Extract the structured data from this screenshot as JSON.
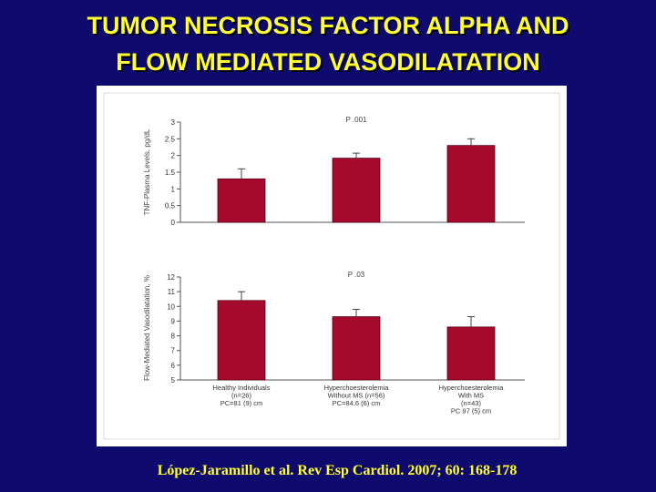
{
  "slide": {
    "title_line1": "TUMOR NECROSIS FACTOR ALPHA AND",
    "title_line2": "FLOW MEDIATED VASODILATATION",
    "citation": "López-Jaramillo et al. Rev Esp Cardiol. 2007; 60: 168-178"
  },
  "colors": {
    "background": "#0f0a6e",
    "title": "#ffff33",
    "bar": "#a50a2e",
    "axis": "#555555"
  },
  "chart_data": [
    {
      "type": "bar",
      "title": "P .001",
      "ylabel": "TNF-Plasma Levels, pg/dL",
      "ylim": [
        0,
        3
      ],
      "yticks": [
        "0",
        "0.5",
        "1",
        "1.5",
        "2",
        "2.5",
        "3"
      ],
      "categories": [
        "Healthy Individuals",
        "Hyperchoesterolemia Without MS",
        "Hyperchoesterolemia With MS"
      ],
      "values": [
        1.3,
        1.92,
        2.3
      ],
      "errors": [
        0.3,
        0.15,
        0.2
      ]
    },
    {
      "type": "bar",
      "title": "P .03",
      "ylabel": "Flow-Mediated Vasodilatation, %",
      "ylim": [
        5,
        12
      ],
      "yticks": [
        "5",
        "6",
        "7",
        "8",
        "9",
        "10",
        "11",
        "12"
      ],
      "categories": [
        "Healthy Individuals",
        "Hyperchoesterolemia Without MS",
        "Hyperchoesterolemia With MS"
      ],
      "category_lines": [
        [
          "Healthy Individuals",
          "(n=26)",
          "PC=81 (9) cm"
        ],
        [
          "Hyperchoesterolemia",
          "Without MS (n=56)",
          "PC=84.6 (6) cm"
        ],
        [
          "Hyperchoesterolemia",
          "With MS",
          "(n=43)",
          "PC 97 (5) cm"
        ]
      ],
      "values": [
        10.4,
        9.3,
        8.6
      ],
      "errors": [
        0.6,
        0.5,
        0.7
      ]
    }
  ]
}
